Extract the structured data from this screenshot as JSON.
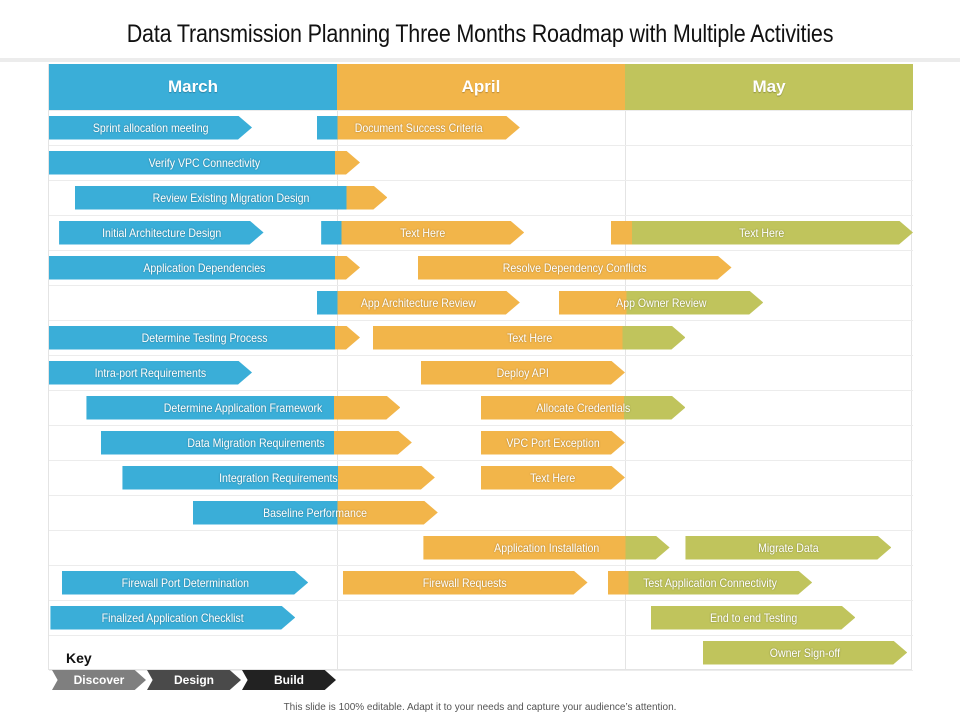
{
  "title": "Data Transmission Planning Three Months Roadmap with Multiple Activities",
  "colors": {
    "discover": "#3aaed8",
    "design": "#f2b54a",
    "build": "#c0c45c",
    "key_discover": "#7f7f7f",
    "key_design": "#4a4a4a",
    "key_build": "#222222"
  },
  "months": [
    "March",
    "April",
    "May"
  ],
  "rows": [
    {
      "bars": [
        {
          "text": "Sprint allocation meeting",
          "start": 0,
          "end": 0.705,
          "segs": [
            [
              "discover",
              1
            ]
          ]
        },
        {
          "text": "Document Success Criteria",
          "start": 0.93,
          "end": 1.635,
          "segs": [
            [
              "discover",
              0.1
            ],
            [
              "design",
              1
            ]
          ]
        }
      ]
    },
    {
      "bars": [
        {
          "text": "Verify VPC Connectivity",
          "start": 0,
          "end": 1.08,
          "segs": [
            [
              "discover",
              0.92
            ],
            [
              "design",
              1
            ]
          ]
        }
      ]
    },
    {
      "bars": [
        {
          "text": "Review Existing Migration Design",
          "start": 0.09,
          "end": 1.175,
          "segs": [
            [
              "discover",
              0.87
            ],
            [
              "design",
              1
            ]
          ]
        }
      ]
    },
    {
      "bars": [
        {
          "text": "Initial Architecture Design",
          "start": 0.035,
          "end": 0.745,
          "segs": [
            [
              "discover",
              1
            ]
          ]
        },
        {
          "text": "Text Here",
          "start": 0.945,
          "end": 1.65,
          "segs": [
            [
              "discover",
              0.1
            ],
            [
              "design",
              1
            ]
          ]
        },
        {
          "text": "Text Here",
          "start": 1.95,
          "end": 3.0,
          "segs": [
            [
              "design",
              0.07
            ],
            [
              "build",
              1
            ]
          ]
        }
      ]
    },
    {
      "bars": [
        {
          "text": "Application Dependencies",
          "start": 0,
          "end": 1.08,
          "segs": [
            [
              "discover",
              0.92
            ],
            [
              "design",
              1
            ]
          ]
        },
        {
          "text": "Resolve Dependency  Conflicts",
          "start": 1.28,
          "end": 2.37,
          "segs": [
            [
              "design",
              1
            ]
          ]
        }
      ]
    },
    {
      "bars": [
        {
          "text": "App Architecture Review",
          "start": 0.93,
          "end": 1.635,
          "segs": [
            [
              "discover",
              0.1
            ],
            [
              "design",
              1
            ]
          ]
        },
        {
          "text": "App Owner Review",
          "start": 1.77,
          "end": 2.48,
          "segs": [
            [
              "design",
              0.33
            ],
            [
              "build",
              1
            ]
          ]
        }
      ]
    },
    {
      "bars": [
        {
          "text": "Determine Testing Process",
          "start": 0,
          "end": 1.08,
          "segs": [
            [
              "discover",
              0.92
            ],
            [
              "design",
              1
            ]
          ]
        },
        {
          "text": "Text Here",
          "start": 1.125,
          "end": 2.21,
          "segs": [
            [
              "design",
              0.8
            ],
            [
              "build",
              1
            ]
          ]
        }
      ]
    },
    {
      "bars": [
        {
          "text": "Intra-port Requirements",
          "start": 0,
          "end": 0.705,
          "segs": [
            [
              "discover",
              1
            ]
          ]
        },
        {
          "text": "Deploy API",
          "start": 1.29,
          "end": 2.0,
          "segs": [
            [
              "design",
              1
            ]
          ]
        }
      ]
    },
    {
      "bars": [
        {
          "text": "Determine Application Framework",
          "start": 0.13,
          "end": 1.22,
          "segs": [
            [
              "discover",
              0.79
            ],
            [
              "design",
              1
            ]
          ]
        },
        {
          "text": "Allocate Credentials",
          "start": 1.5,
          "end": 2.21,
          "segs": [
            [
              "design",
              0.7
            ],
            [
              "build",
              1
            ]
          ]
        }
      ]
    },
    {
      "bars": [
        {
          "text": "Data Migration Requirements",
          "start": 0.18,
          "end": 1.26,
          "segs": [
            [
              "discover",
              0.75
            ],
            [
              "design",
              1
            ]
          ]
        },
        {
          "text": "VPC Port Exception",
          "start": 1.5,
          "end": 2.0,
          "segs": [
            [
              "design",
              1
            ]
          ]
        }
      ]
    },
    {
      "bars": [
        {
          "text": "Integration Requirements",
          "start": 0.255,
          "end": 1.34,
          "segs": [
            [
              "discover",
              0.69
            ],
            [
              "design",
              1
            ]
          ]
        },
        {
          "text": "Text Here",
          "start": 1.5,
          "end": 2.0,
          "segs": [
            [
              "design",
              1
            ]
          ]
        }
      ]
    },
    {
      "bars": [
        {
          "text": "Baseline  Performance",
          "start": 0.5,
          "end": 1.35,
          "segs": [
            [
              "discover",
              0.59
            ],
            [
              "design",
              1
            ]
          ]
        }
      ]
    },
    {
      "bars": [
        {
          "text": "Application Installation",
          "start": 1.3,
          "end": 2.155,
          "segs": [
            [
              "design",
              0.82
            ],
            [
              "build",
              1
            ]
          ]
        },
        {
          "text": "Migrate Data",
          "start": 2.21,
          "end": 2.925,
          "segs": [
            [
              "build",
              1
            ]
          ]
        }
      ]
    },
    {
      "bars": [
        {
          "text": "Firewall Port Determination",
          "start": 0.045,
          "end": 0.9,
          "segs": [
            [
              "discover",
              1
            ]
          ]
        },
        {
          "text": "Firewall Requests",
          "start": 1.02,
          "end": 1.87,
          "segs": [
            [
              "design",
              1
            ]
          ]
        },
        {
          "text": "Test Application Connectivity",
          "start": 1.94,
          "end": 2.65,
          "segs": [
            [
              "design",
              0.1
            ],
            [
              "build",
              1
            ]
          ]
        }
      ]
    },
    {
      "bars": [
        {
          "text": "Finalized Application Checklist",
          "start": 0.005,
          "end": 0.855,
          "segs": [
            [
              "discover",
              1
            ]
          ]
        },
        {
          "text": "End to end Testing",
          "start": 2.09,
          "end": 2.8,
          "segs": [
            [
              "build",
              1
            ]
          ]
        }
      ]
    },
    {
      "bars": [
        {
          "text": "Owner Sign-off",
          "start": 2.27,
          "end": 2.98,
          "segs": [
            [
              "build",
              1
            ]
          ]
        }
      ]
    }
  ],
  "key": {
    "title": "Key",
    "items": [
      "Discover",
      "Design",
      "Build"
    ]
  },
  "footer": "This slide is 100% editable. Adapt it to your needs and capture your audience’s attention."
}
